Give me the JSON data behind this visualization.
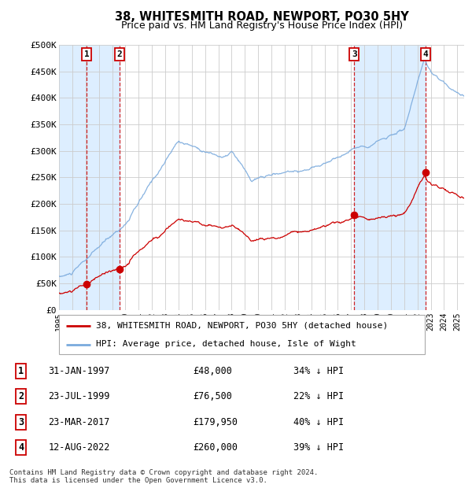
{
  "title": "38, WHITESMITH ROAD, NEWPORT, PO30 5HY",
  "subtitle": "Price paid vs. HM Land Registry's House Price Index (HPI)",
  "hpi_color": "#7aaadd",
  "price_color": "#cc0000",
  "sale_dates": [
    1997.08,
    1999.56,
    2017.23,
    2022.62
  ],
  "sale_prices": [
    48000,
    76500,
    179950,
    260000
  ],
  "sale_labels": [
    "1",
    "2",
    "3",
    "4"
  ],
  "xmin": 1995.0,
  "xmax": 2025.5,
  "ymin": 0,
  "ymax": 500000,
  "yticks": [
    0,
    50000,
    100000,
    150000,
    200000,
    250000,
    300000,
    350000,
    400000,
    450000,
    500000
  ],
  "ytick_labels": [
    "£0",
    "£50K",
    "£100K",
    "£150K",
    "£200K",
    "£250K",
    "£300K",
    "£350K",
    "£400K",
    "£450K",
    "£500K"
  ],
  "legend_entries": [
    {
      "label": "38, WHITESMITH ROAD, NEWPORT, PO30 5HY (detached house)",
      "color": "#cc0000"
    },
    {
      "label": "HPI: Average price, detached house, Isle of Wight",
      "color": "#7aaadd"
    }
  ],
  "table_rows": [
    {
      "num": "1",
      "date": "31-JAN-1997",
      "price": "£48,000",
      "pct": "34% ↓ HPI"
    },
    {
      "num": "2",
      "date": "23-JUL-1999",
      "price": "£76,500",
      "pct": "22% ↓ HPI"
    },
    {
      "num": "3",
      "date": "23-MAR-2017",
      "price": "£179,950",
      "pct": "40% ↓ HPI"
    },
    {
      "num": "4",
      "date": "12-AUG-2022",
      "price": "£260,000",
      "pct": "39% ↓ HPI"
    }
  ],
  "footnote": "Contains HM Land Registry data © Crown copyright and database right 2024.\nThis data is licensed under the Open Government Licence v3.0."
}
